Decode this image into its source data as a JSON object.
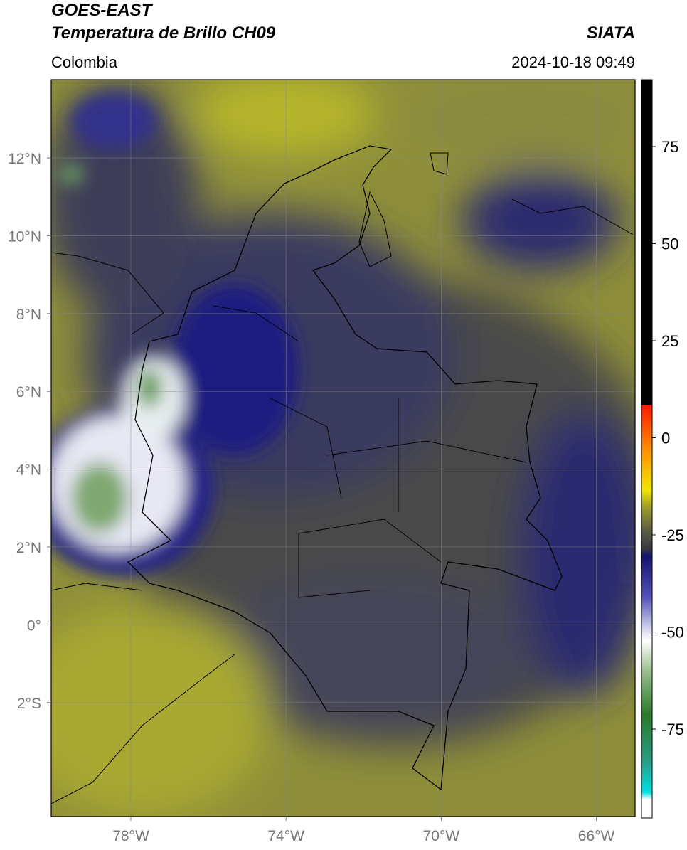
{
  "header": {
    "satellite": "GOES-EAST",
    "product": "Temperatura de Brillo CH09",
    "source": "SIATA",
    "region": "Colombia",
    "datetime": "2024-10-18 09:49"
  },
  "map": {
    "lat_labels": [
      "12°N",
      "10°N",
      "8°N",
      "6°N",
      "4°N",
      "2°N",
      "0°",
      "2°S"
    ],
    "lon_labels": [
      "78°W",
      "74°W",
      "70°W",
      "66°W"
    ]
  },
  "colorbar": {
    "labels": [
      "75",
      "50",
      "25",
      "0",
      "-25",
      "-50",
      "-75"
    ]
  }
}
